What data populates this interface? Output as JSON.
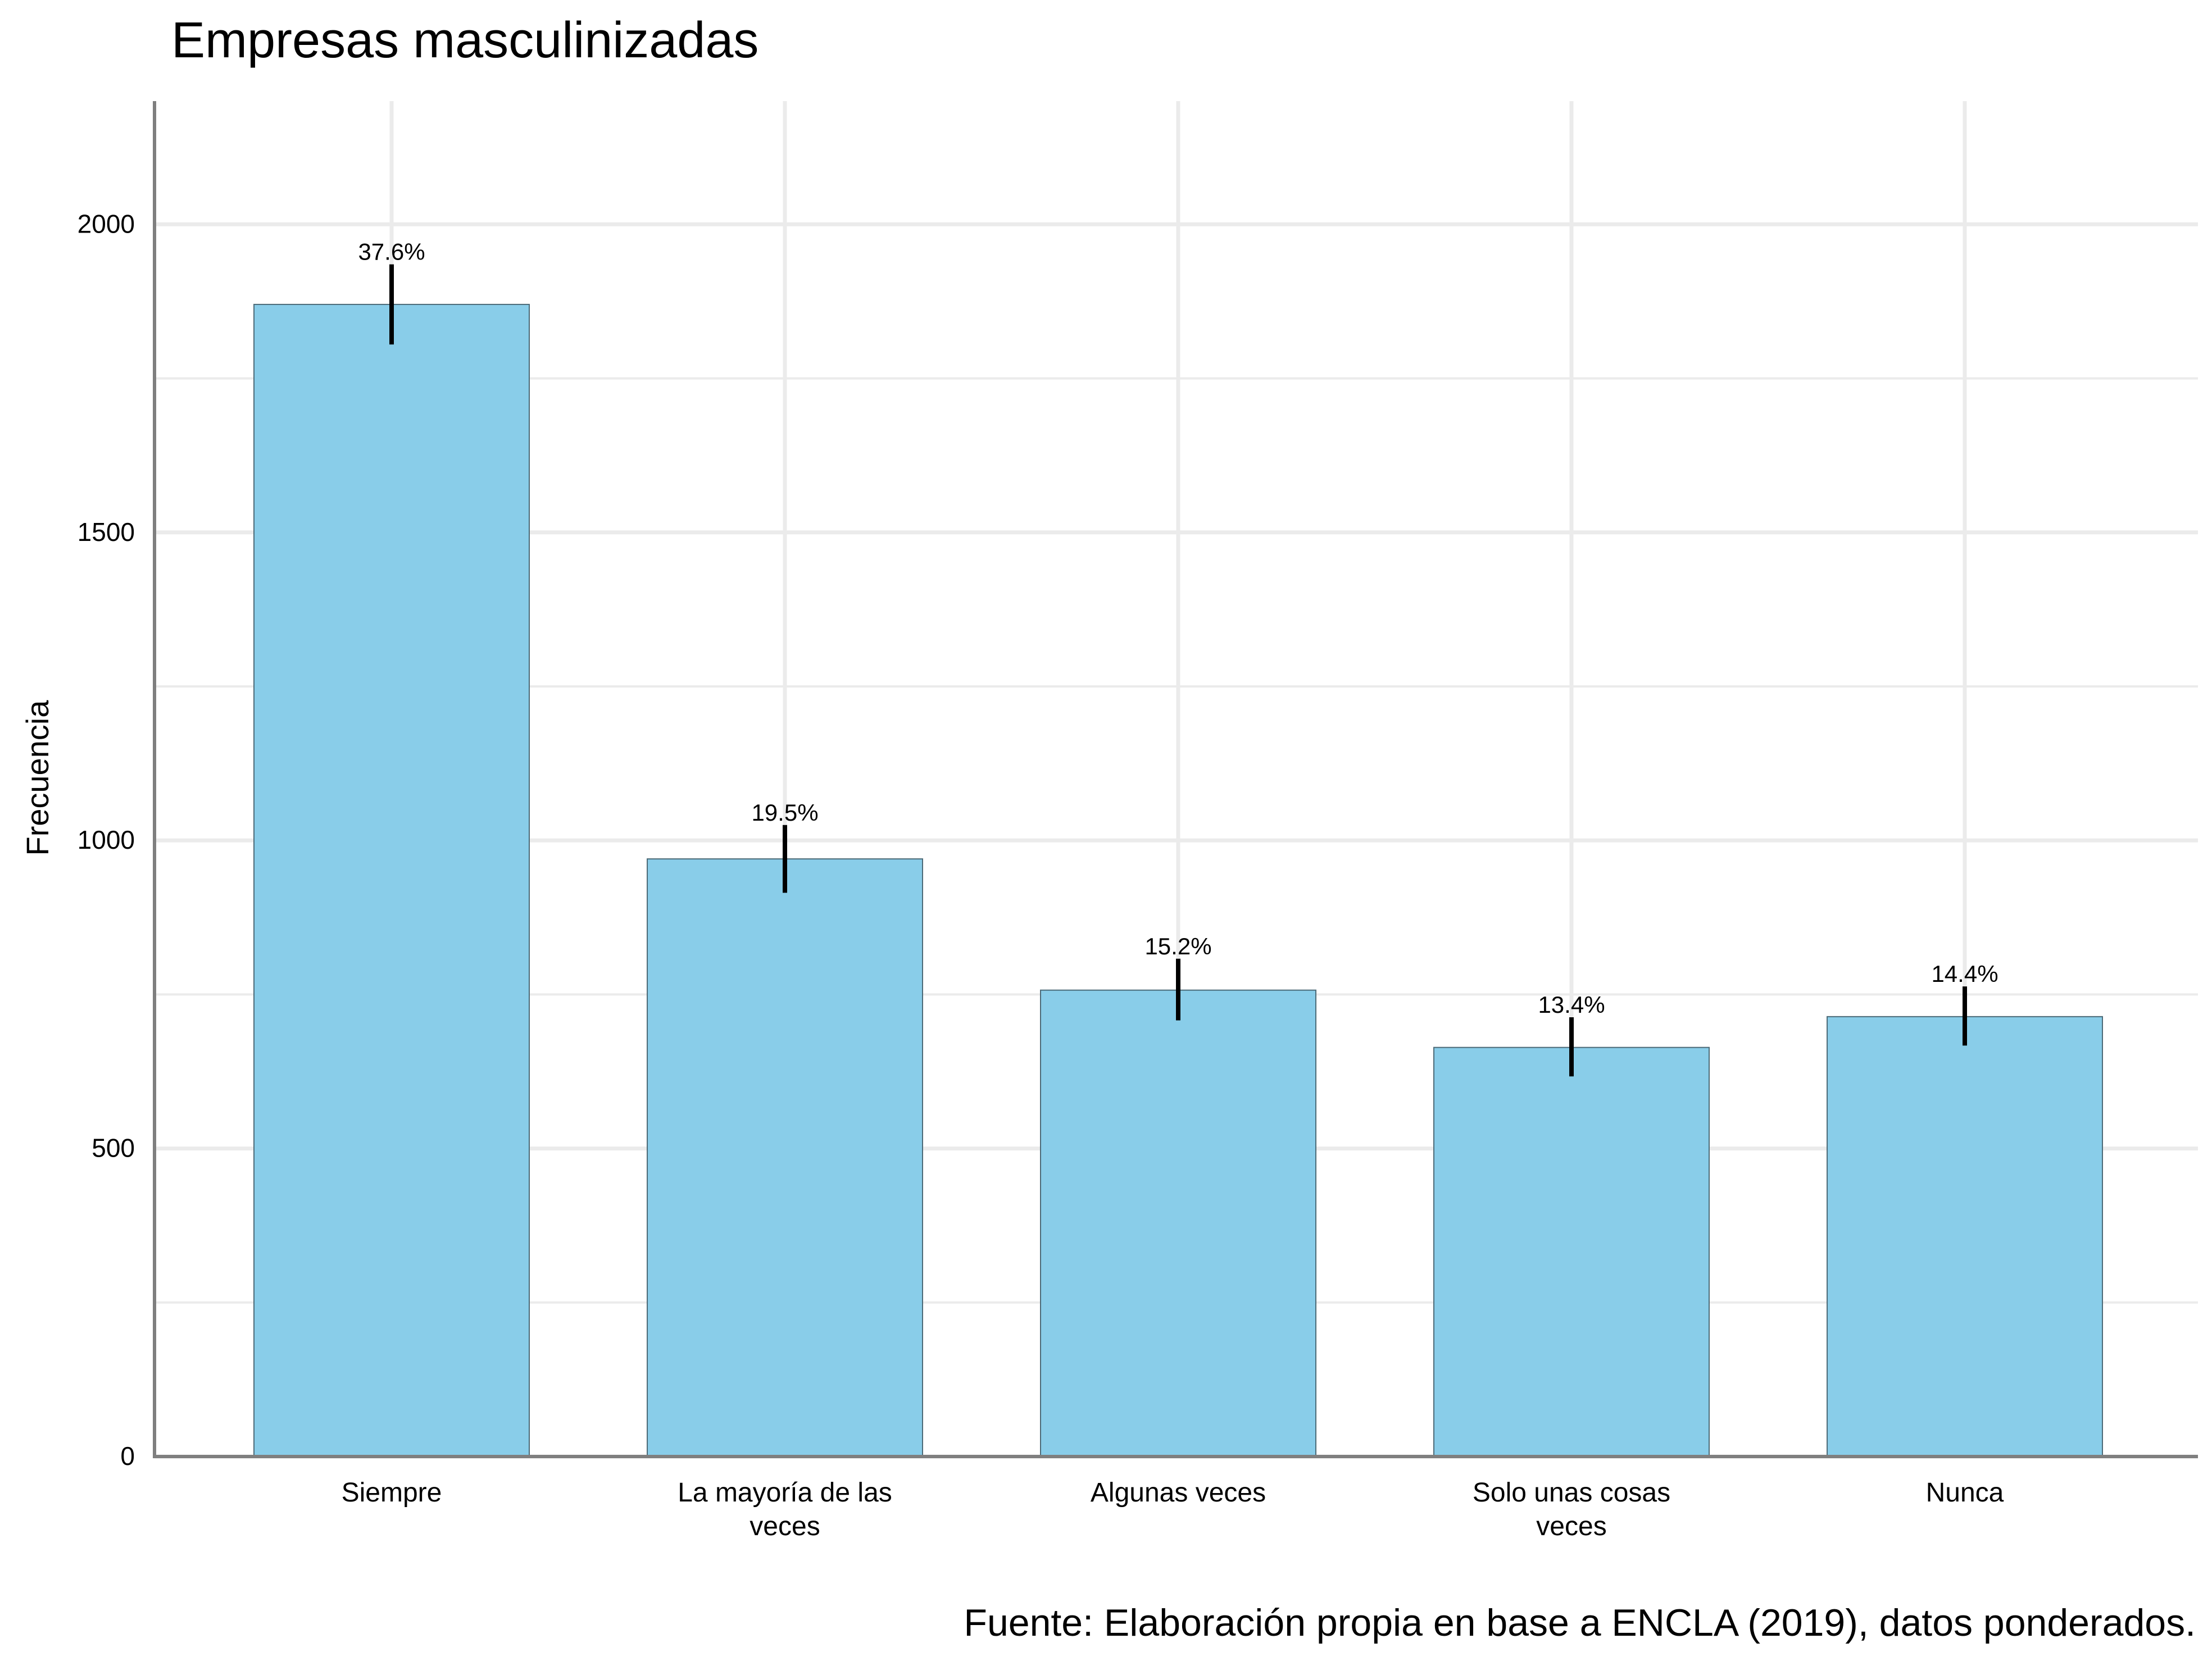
{
  "chart_data": {
    "type": "bar",
    "title": "Empresas masculinizadas",
    "caption": "Fuente: Elaboración propia en base a ENCLA (2019), datos ponderados.",
    "xlabel": "",
    "ylabel": "Frecuencia",
    "categories": [
      [
        "Siempre"
      ],
      [
        "La mayoría de las",
        "veces"
      ],
      [
        "Algunas veces"
      ],
      [
        "Solo unas cosas",
        "veces"
      ],
      [
        "Nunca"
      ]
    ],
    "values": [
      1870,
      970,
      757,
      664,
      714
    ],
    "error_low": [
      1805,
      915,
      708,
      617,
      667
    ],
    "error_high": [
      1935,
      1025,
      808,
      713,
      763
    ],
    "labels": [
      "37.6%",
      "19.5%",
      "15.2%",
      "13.4%",
      "14.4%"
    ],
    "ylim": [
      0,
      2200
    ],
    "yticks": [
      0,
      500,
      1000,
      1500,
      2000
    ],
    "yticks_minor": [
      250,
      750,
      1250,
      1750
    ],
    "grid": true,
    "legend": "none",
    "colors": {
      "bar_fill": "#89CDE9",
      "bar_stroke": "#4D6B78",
      "error_bar": "#000000",
      "grid": "#EBEBEB",
      "axis": "#7F7F7F"
    }
  }
}
